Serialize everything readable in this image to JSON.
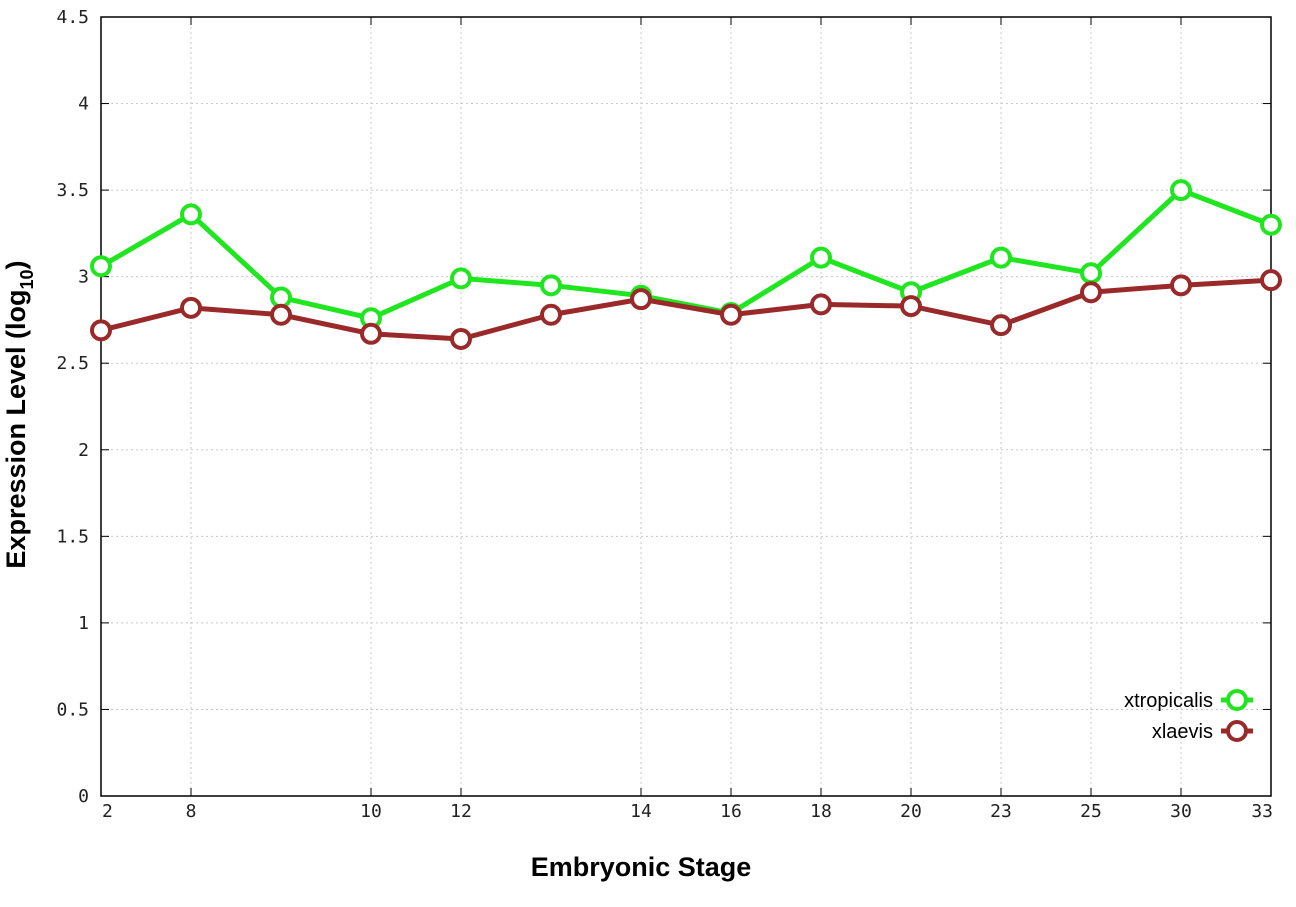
{
  "chart_data": {
    "type": "line",
    "xlabel": "Embryonic Stage",
    "ylabel_main": "Expression Level (log",
    "ylabel_sub": "10",
    "ylabel_close": ")",
    "ylim": [
      0,
      4.5
    ],
    "yticks": [
      "0",
      "0.5",
      "1",
      "1.5",
      "2",
      "2.5",
      "3",
      "3.5",
      "4",
      "4.5"
    ],
    "ytick_values": [
      0,
      0.5,
      1,
      1.5,
      2,
      2.5,
      3,
      3.5,
      4,
      4.5
    ],
    "x_stages": [
      2,
      8,
      9,
      10,
      12,
      13,
      14,
      16,
      18,
      20,
      23,
      25,
      30,
      33
    ],
    "xticks": [
      "2",
      "8",
      "10",
      "12",
      "14",
      "16",
      "18",
      "20",
      "23",
      "25",
      "30",
      "33"
    ],
    "xtick_values": [
      2,
      8,
      10,
      12,
      14,
      16,
      18,
      20,
      23,
      25,
      30,
      33
    ],
    "grid": true,
    "legend_position": "bottom-right",
    "series": [
      {
        "name": "xtropicalis",
        "color": "#1fe61f",
        "x": [
          2,
          8,
          9,
          10,
          12,
          13,
          14,
          16,
          18,
          20,
          23,
          25,
          30,
          33
        ],
        "values": [
          3.06,
          3.36,
          2.88,
          2.76,
          2.99,
          2.95,
          2.89,
          2.79,
          3.11,
          2.91,
          3.11,
          3.02,
          3.5,
          3.3
        ]
      },
      {
        "name": "xlaevis",
        "color": "#9a2a2a",
        "x": [
          2,
          8,
          9,
          10,
          12,
          13,
          14,
          16,
          18,
          20,
          23,
          25,
          30,
          33
        ],
        "values": [
          2.69,
          2.82,
          2.78,
          2.67,
          2.64,
          2.78,
          2.87,
          2.78,
          2.84,
          2.83,
          2.72,
          2.91,
          2.95,
          2.98
        ]
      }
    ]
  }
}
